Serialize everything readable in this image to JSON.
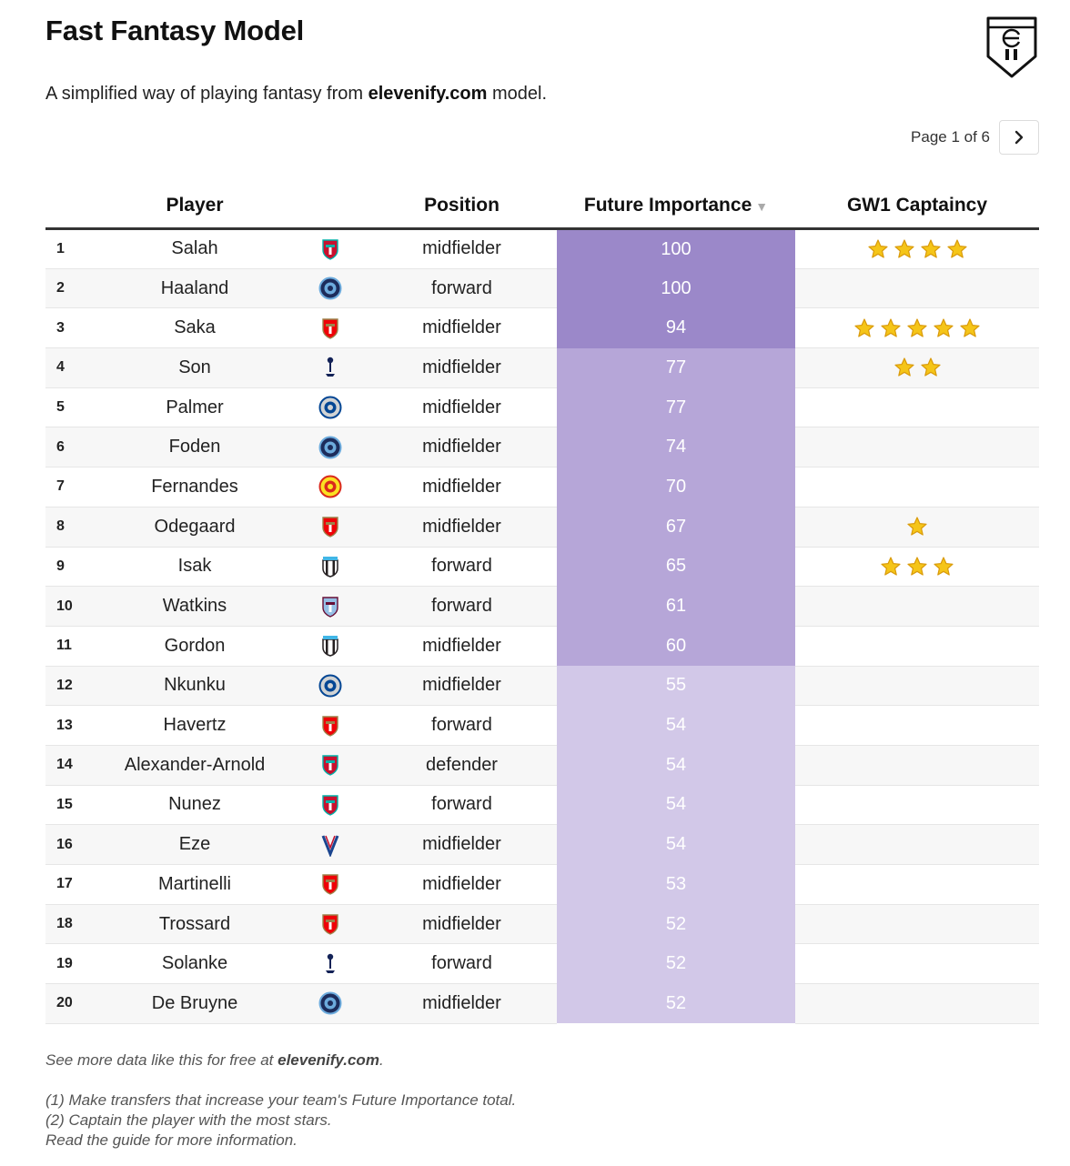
{
  "header": {
    "title": "Fast Fantasy Model",
    "subtitle_prefix": "A simplified way of playing fantasy from ",
    "subtitle_site": "elevenify.com",
    "subtitle_suffix": " model.",
    "logo_icon": "elevenify-shield-logo"
  },
  "pager": {
    "text": "Page 1 of 6",
    "next_icon": "chevron-right-icon"
  },
  "columns": {
    "player": "Player",
    "position": "Position",
    "importance": "Future Importance",
    "captaincy": "GW1 Captaincy",
    "sort_icon": "▼"
  },
  "clubs": {
    "liverpool": {
      "icon": "liverpool-crest-icon",
      "color": "#c8102e",
      "accent": "#00b2a9"
    },
    "mancity": {
      "icon": "man-city-crest-icon",
      "color": "#6cabdd",
      "accent": "#1c2c5b"
    },
    "arsenal": {
      "icon": "arsenal-crest-icon",
      "color": "#ef0107",
      "accent": "#9c824a"
    },
    "spurs": {
      "icon": "tottenham-crest-icon",
      "color": "#132257",
      "accent": "#ffffff"
    },
    "chelsea": {
      "icon": "chelsea-crest-icon",
      "color": "#034694",
      "accent": "#d1d3d4"
    },
    "manutd": {
      "icon": "man-utd-crest-icon",
      "color": "#da291c",
      "accent": "#fbe122"
    },
    "newcastle": {
      "icon": "newcastle-crest-icon",
      "color": "#241f20",
      "accent": "#41b6e6"
    },
    "villa": {
      "icon": "aston-villa-crest-icon",
      "color": "#95bfe5",
      "accent": "#670e36"
    },
    "palace": {
      "icon": "crystal-palace-crest-icon",
      "color": "#1b458f",
      "accent": "#c4122e"
    }
  },
  "players": [
    {
      "rank": "1",
      "name": "Salah",
      "club": "liverpool",
      "position": "midfielder",
      "importance": "100",
      "stars": 4
    },
    {
      "rank": "2",
      "name": "Haaland",
      "club": "mancity",
      "position": "forward",
      "importance": "100",
      "stars": 0
    },
    {
      "rank": "3",
      "name": "Saka",
      "club": "arsenal",
      "position": "midfielder",
      "importance": "94",
      "stars": 5
    },
    {
      "rank": "4",
      "name": "Son",
      "club": "spurs",
      "position": "midfielder",
      "importance": "77",
      "stars": 2
    },
    {
      "rank": "5",
      "name": "Palmer",
      "club": "chelsea",
      "position": "midfielder",
      "importance": "77",
      "stars": 0
    },
    {
      "rank": "6",
      "name": "Foden",
      "club": "mancity",
      "position": "midfielder",
      "importance": "74",
      "stars": 0
    },
    {
      "rank": "7",
      "name": "Fernandes",
      "club": "manutd",
      "position": "midfielder",
      "importance": "70",
      "stars": 0
    },
    {
      "rank": "8",
      "name": "Odegaard",
      "club": "arsenal",
      "position": "midfielder",
      "importance": "67",
      "stars": 1
    },
    {
      "rank": "9",
      "name": "Isak",
      "club": "newcastle",
      "position": "forward",
      "importance": "65",
      "stars": 3
    },
    {
      "rank": "10",
      "name": "Watkins",
      "club": "villa",
      "position": "forward",
      "importance": "61",
      "stars": 0
    },
    {
      "rank": "11",
      "name": "Gordon",
      "club": "newcastle",
      "position": "midfielder",
      "importance": "60",
      "stars": 0
    },
    {
      "rank": "12",
      "name": "Nkunku",
      "club": "chelsea",
      "position": "midfielder",
      "importance": "55",
      "stars": 0
    },
    {
      "rank": "13",
      "name": "Havertz",
      "club": "arsenal",
      "position": "forward",
      "importance": "54",
      "stars": 0
    },
    {
      "rank": "14",
      "name": "Alexander-Arnold",
      "club": "liverpool",
      "position": "defender",
      "importance": "54",
      "stars": 0
    },
    {
      "rank": "15",
      "name": "Nunez",
      "club": "liverpool",
      "position": "forward",
      "importance": "54",
      "stars": 0
    },
    {
      "rank": "16",
      "name": "Eze",
      "club": "palace",
      "position": "midfielder",
      "importance": "54",
      "stars": 0
    },
    {
      "rank": "17",
      "name": "Martinelli",
      "club": "arsenal",
      "position": "midfielder",
      "importance": "53",
      "stars": 0
    },
    {
      "rank": "18",
      "name": "Trossard",
      "club": "arsenal",
      "position": "midfielder",
      "importance": "52",
      "stars": 0
    },
    {
      "rank": "19",
      "name": "Solanke",
      "club": "spurs",
      "position": "forward",
      "importance": "52",
      "stars": 0
    },
    {
      "rank": "20",
      "name": "De Bruyne",
      "club": "mancity",
      "position": "midfielder",
      "importance": "52",
      "stars": 0
    }
  ],
  "colors": {
    "importance_high": "#9b88c9",
    "importance_mid": "#b6a6d8",
    "importance_low": "#d2c8e8",
    "star_fill": "#f5c518",
    "star_stroke": "#d99a0b"
  },
  "footer": {
    "more_prefix": "See more data like this for free at ",
    "more_site": "elevenify.com",
    "more_suffix": ".",
    "note1": "(1) Make transfers that increase your team's Future Importance total.",
    "note2": "(2) Captain the player with the most stars.",
    "note3": "Read the guide for more information."
  }
}
